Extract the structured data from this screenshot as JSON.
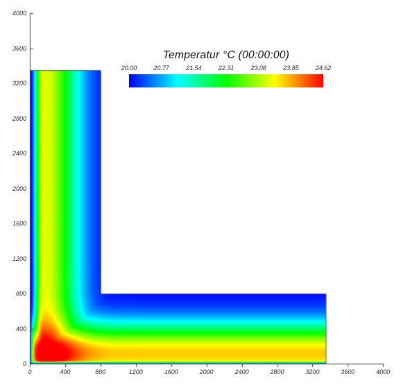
{
  "page": {
    "background": "#ffffff",
    "axis_color": "#3a3a3a",
    "outline_color": "#555555"
  },
  "legend": {
    "title": "Temperatur °C (00:00:00)",
    "tick_labels": [
      "20.00",
      "20.77",
      "21.54",
      "22.31",
      "23.08",
      "23.85",
      "24.62"
    ],
    "gradient_stops": [
      "#0000ff",
      "#00ffff",
      "#00ff00",
      "#ffff00",
      "#ff0000"
    ]
  },
  "chart_data": {
    "type": "heatmap",
    "title": "Temperatur °C (00:00:00)",
    "xlabel": "",
    "ylabel": "",
    "x_range": [
      0,
      4000
    ],
    "y_range": [
      0,
      4000
    ],
    "x_ticks": [
      0,
      400,
      800,
      1200,
      1600,
      2000,
      2400,
      2800,
      3200,
      3600,
      4000
    ],
    "y_ticks": [
      0,
      400,
      800,
      1200,
      1600,
      2000,
      2400,
      2800,
      3200,
      3600,
      4000
    ],
    "grid": false,
    "legend_position": "top-center",
    "value_range": [
      20.0,
      24.62
    ],
    "colorbar_ticks": [
      20.0,
      20.77,
      21.54,
      22.31,
      23.08,
      23.85,
      24.62
    ],
    "colormap": "rainbow blue-cyan-green-yellow-red",
    "domain": {
      "shape": "L",
      "wall_thickness": 800,
      "arm_length": 3350,
      "description": "L-shaped wall/floor corner section: vertical arm x=0..800, y=0..3350; horizontal arm x=0..3350, y=0..800; notch region (x>800, y>800) is empty."
    },
    "field": {
      "description": "Temperature field at time 00:00:00. Cold (20.00 C, blue) thin layer on outer surfaces x=0 and y=0; warm band ~23.7 C (yellow) running parallel to the outer surfaces at depth ~120-160; field decays to ~20 C (blue) at the inner notch surfaces; hot spot up to 24.62 C (red) near the inner corner around (x=200, y=140), elongated along the floor.",
      "hotspot": {
        "x": 200,
        "y": 140,
        "t_max": 24.62
      },
      "model": {
        "t_min": 20.0,
        "t_span": 4.62,
        "band_x": {
          "amp": 3.35,
          "center": 160,
          "sigma_in": 180,
          "sigma_out": 380,
          "edge_bl": 63,
          "cross_bl": 25
        },
        "band_y": {
          "amp": 3.7,
          "center": 120,
          "sigma_in": 400,
          "sigma_out": 340,
          "edge_bl": 18,
          "cross_bl": 22
        },
        "coupling": 0.45
      }
    }
  }
}
